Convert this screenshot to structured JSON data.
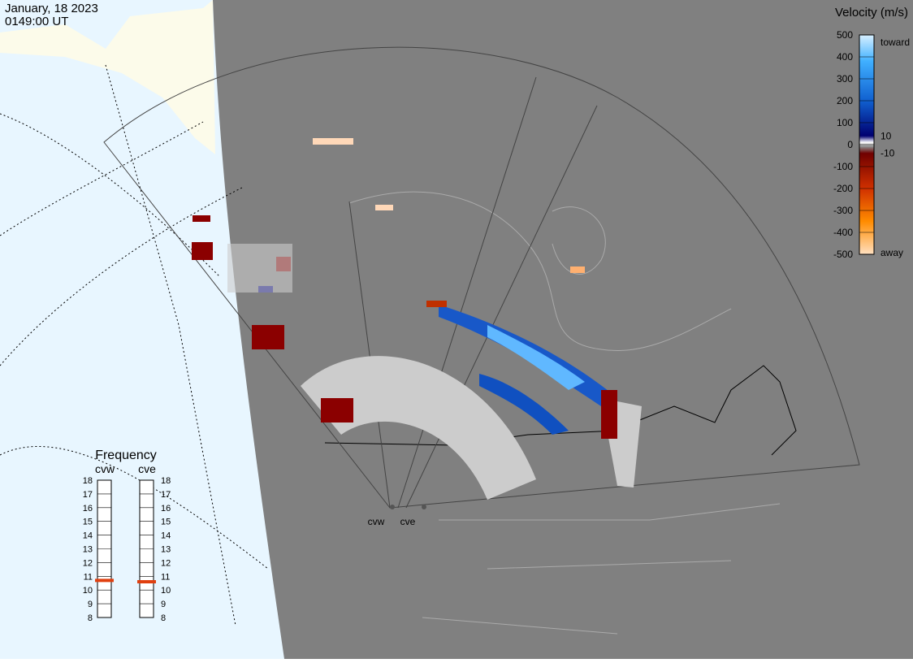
{
  "header": {
    "date": "January, 18 2023",
    "time": "0149:00 UT"
  },
  "velocity_scale": {
    "title": "Velocity (m/s)",
    "ticks": [
      500,
      400,
      300,
      200,
      100,
      0,
      -100,
      -200,
      -300,
      -400,
      -500
    ],
    "inner_ticks": [
      10,
      -10
    ],
    "toward_label": "toward",
    "away_label": "away"
  },
  "frequency": {
    "title": "Frequency",
    "ticks": [
      18,
      17,
      16,
      15,
      14,
      13,
      12,
      11,
      10,
      9,
      8
    ],
    "radars": [
      {
        "name": "cvw",
        "value": 10.7
      },
      {
        "name": "cve",
        "value": 10.6
      }
    ]
  },
  "map": {
    "radar_labels": [
      "cvw",
      "cve"
    ]
  }
}
